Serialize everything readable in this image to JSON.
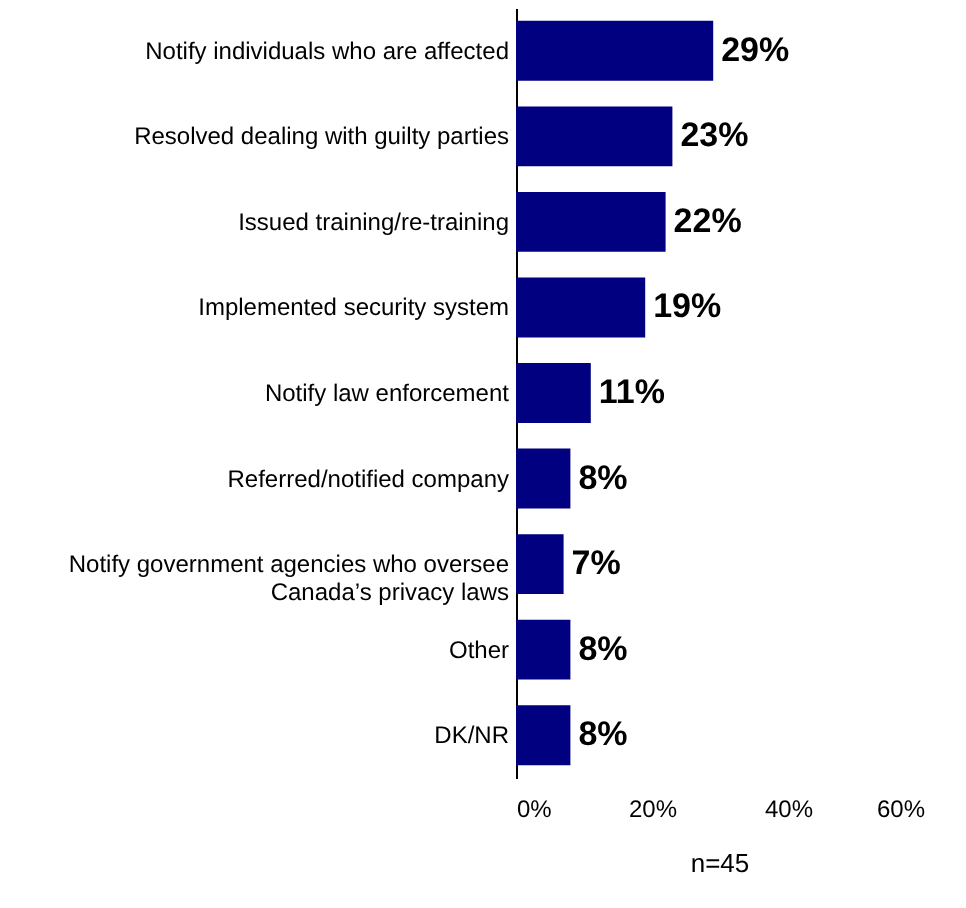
{
  "chart_data": {
    "type": "bar",
    "orientation": "horizontal",
    "categories": [
      "Notify individuals who are affected",
      "Resolved dealing with guilty parties",
      "Issued training/re-training",
      "Implemented security system",
      "Notify law enforcement",
      "Referred/notified company",
      "Notify government agencies who oversee Canada’s privacy laws",
      "Other",
      "DK/NR"
    ],
    "values": [
      29,
      23,
      22,
      19,
      11,
      8,
      7,
      8,
      8
    ],
    "value_labels": [
      "29%",
      "23%",
      "22%",
      "19%",
      "11%",
      "8%",
      "7%",
      "8%",
      "8%"
    ],
    "color": "#000080",
    "xlim": [
      0,
      60
    ],
    "xticks": [
      {
        "value": 0,
        "label": "0%"
      },
      {
        "value": 20,
        "label": "20%"
      },
      {
        "value": 40,
        "label": "40%"
      },
      {
        "value": 60,
        "label": "60%"
      }
    ],
    "grid": false,
    "annotations": [
      "n=45"
    ]
  }
}
